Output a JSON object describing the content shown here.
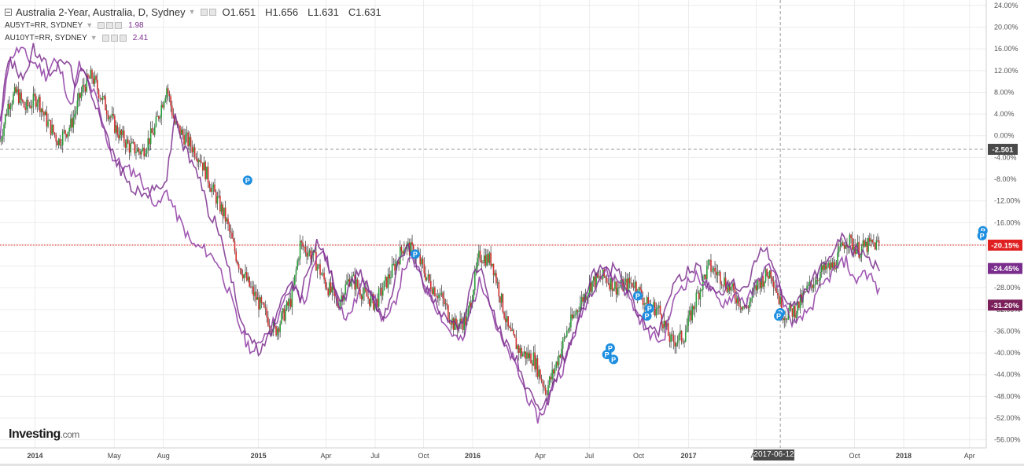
{
  "legend": {
    "main_title": "Australia 2-Year, Australia, D, Sydney",
    "open": "O1.651",
    "high": "H1.656",
    "low": "L1.631",
    "close": "C1.631",
    "series": [
      {
        "name": "AU5YT=RR, SYDNEY",
        "value": "1.98",
        "color": "#8e3aa3"
      },
      {
        "name": "AU10YT=RR, SYDNEY",
        "value": "2.41",
        "color": "#7a2d8c"
      }
    ]
  },
  "logo": {
    "main": "Investing",
    "suffix": ".com"
  },
  "crosshair": {
    "date_label": "2017-06-12",
    "value_label": "-2.501"
  },
  "reference_line_label": "-20.15%",
  "chart_data": {
    "type": "line",
    "ylim": [
      -57.5,
      25
    ],
    "y_ticks": [
      24,
      20,
      16,
      12,
      8,
      4,
      0,
      -4,
      -8,
      -12,
      -16,
      -20,
      -24,
      -28,
      -32,
      -36,
      -40,
      -44,
      -48,
      -52,
      -56
    ],
    "x_ticks": [
      {
        "label": "2014",
        "frac": 0.042
      },
      {
        "label": "May",
        "frac": 0.137
      },
      {
        "label": "Aug",
        "frac": 0.196
      },
      {
        "label": "2015",
        "frac": 0.31
      },
      {
        "label": "Apr",
        "frac": 0.391
      },
      {
        "label": "Jul",
        "frac": 0.45
      },
      {
        "label": "Oct",
        "frac": 0.508
      },
      {
        "label": "2016",
        "frac": 0.567
      },
      {
        "label": "Apr",
        "frac": 0.648
      },
      {
        "label": "Jul",
        "frac": 0.707
      },
      {
        "label": "Oct",
        "frac": 0.766
      },
      {
        "label": "2017",
        "frac": 0.826
      },
      {
        "label": "Apr",
        "frac": 0.907
      },
      {
        "label": "Oct",
        "frac": 1.025
      },
      {
        "label": "2018",
        "frac": 1.084
      },
      {
        "label": "Apr",
        "frac": 1.163
      }
    ],
    "price_labels": [
      {
        "label": "-20.15%",
        "value": -20.15,
        "color": "#e02020"
      },
      {
        "label": "-24.45%",
        "value": -24.45,
        "color": "#7a2d8c"
      },
      {
        "label": "-31.20%",
        "value": -31.2,
        "color": "#7a1f5a"
      }
    ],
    "crosshair_value": -2.501,
    "crosshair_frac": 0.936,
    "reference_value": -20.15,
    "series": [
      {
        "name": "Australia 2-Year",
        "style": "candles",
        "points": [
          [
            0,
            -1
          ],
          [
            0.01,
            6
          ],
          [
            0.02,
            8
          ],
          [
            0.03,
            5
          ],
          [
            0.045,
            7
          ],
          [
            0.055,
            3
          ],
          [
            0.07,
            -1
          ],
          [
            0.085,
            2
          ],
          [
            0.1,
            9
          ],
          [
            0.11,
            11
          ],
          [
            0.125,
            6
          ],
          [
            0.14,
            1
          ],
          [
            0.155,
            -2
          ],
          [
            0.17,
            -3
          ],
          [
            0.185,
            1
          ],
          [
            0.2,
            9
          ],
          [
            0.21,
            2
          ],
          [
            0.225,
            -1
          ],
          [
            0.24,
            -4
          ],
          [
            0.255,
            -10
          ],
          [
            0.27,
            -15
          ],
          [
            0.285,
            -23
          ],
          [
            0.3,
            -28
          ],
          [
            0.315,
            -32
          ],
          [
            0.33,
            -36
          ],
          [
            0.35,
            -30
          ],
          [
            0.36,
            -20
          ],
          [
            0.375,
            -22
          ],
          [
            0.39,
            -27
          ],
          [
            0.405,
            -31
          ],
          [
            0.42,
            -26
          ],
          [
            0.435,
            -29
          ],
          [
            0.45,
            -31
          ],
          [
            0.47,
            -25
          ],
          [
            0.485,
            -20
          ],
          [
            0.5,
            -22
          ],
          [
            0.515,
            -27
          ],
          [
            0.53,
            -30
          ],
          [
            0.545,
            -35
          ],
          [
            0.56,
            -34
          ],
          [
            0.575,
            -22
          ],
          [
            0.59,
            -23
          ],
          [
            0.61,
            -36
          ],
          [
            0.625,
            -40
          ],
          [
            0.64,
            -41
          ],
          [
            0.655,
            -47
          ],
          [
            0.665,
            -43
          ],
          [
            0.68,
            -36
          ],
          [
            0.695,
            -31
          ],
          [
            0.71,
            -27
          ],
          [
            0.725,
            -26
          ],
          [
            0.74,
            -28
          ],
          [
            0.76,
            -27
          ],
          [
            0.775,
            -31
          ],
          [
            0.79,
            -32
          ],
          [
            0.805,
            -38
          ],
          [
            0.82,
            -37
          ],
          [
            0.835,
            -30
          ],
          [
            0.85,
            -24
          ],
          [
            0.865,
            -26
          ],
          [
            0.88,
            -29
          ],
          [
            0.895,
            -32
          ],
          [
            0.91,
            -27
          ],
          [
            0.925,
            -25
          ],
          [
            0.94,
            -33
          ],
          [
            0.955,
            -32
          ],
          [
            0.97,
            -28
          ],
          [
            0.985,
            -25
          ],
          [
            1,
            -24
          ],
          [
            1.015,
            -19
          ],
          [
            1.03,
            -21
          ],
          [
            1.045,
            -20
          ],
          [
            1.055,
            -20
          ]
        ]
      },
      {
        "name": "AU5YT=RR, SYDNEY",
        "style": "line",
        "color": "#8e3aa3",
        "points": [
          [
            0,
            -1
          ],
          [
            0.008,
            12
          ],
          [
            0.015,
            15
          ],
          [
            0.025,
            16
          ],
          [
            0.035,
            14
          ],
          [
            0.045,
            13
          ],
          [
            0.055,
            11
          ],
          [
            0.065,
            14
          ],
          [
            0.075,
            11
          ],
          [
            0.085,
            5
          ],
          [
            0.095,
            13
          ],
          [
            0.105,
            10
          ],
          [
            0.115,
            7
          ],
          [
            0.125,
            1
          ],
          [
            0.135,
            -4
          ],
          [
            0.15,
            -6
          ],
          [
            0.165,
            -7
          ],
          [
            0.18,
            -11
          ],
          [
            0.19,
            -13
          ],
          [
            0.2,
            -10
          ],
          [
            0.21,
            -14
          ],
          [
            0.22,
            -17
          ],
          [
            0.23,
            -20
          ],
          [
            0.245,
            -21
          ],
          [
            0.26,
            -23
          ],
          [
            0.275,
            -29
          ],
          [
            0.285,
            -34
          ],
          [
            0.295,
            -38
          ],
          [
            0.305,
            -40
          ],
          [
            0.315,
            -37
          ],
          [
            0.325,
            -35
          ],
          [
            0.335,
            -33
          ],
          [
            0.345,
            -29
          ],
          [
            0.355,
            -28
          ],
          [
            0.365,
            -31
          ],
          [
            0.375,
            -25
          ],
          [
            0.385,
            -21
          ],
          [
            0.395,
            -24
          ],
          [
            0.405,
            -30
          ],
          [
            0.415,
            -34
          ],
          [
            0.425,
            -31
          ],
          [
            0.435,
            -27
          ],
          [
            0.445,
            -28
          ],
          [
            0.455,
            -33
          ],
          [
            0.465,
            -34
          ],
          [
            0.475,
            -30
          ],
          [
            0.485,
            -24
          ],
          [
            0.495,
            -23
          ],
          [
            0.505,
            -26
          ],
          [
            0.515,
            -29
          ],
          [
            0.525,
            -32
          ],
          [
            0.535,
            -35
          ],
          [
            0.545,
            -37
          ],
          [
            0.555,
            -38
          ],
          [
            0.565,
            -32
          ],
          [
            0.575,
            -27
          ],
          [
            0.585,
            -29
          ],
          [
            0.595,
            -35
          ],
          [
            0.605,
            -39
          ],
          [
            0.615,
            -41
          ],
          [
            0.625,
            -45
          ],
          [
            0.635,
            -49
          ],
          [
            0.645,
            -52
          ],
          [
            0.655,
            -50
          ],
          [
            0.665,
            -45
          ],
          [
            0.675,
            -43
          ],
          [
            0.685,
            -38
          ],
          [
            0.695,
            -34
          ],
          [
            0.705,
            -30
          ],
          [
            0.715,
            -27
          ],
          [
            0.725,
            -25
          ],
          [
            0.735,
            -26
          ],
          [
            0.745,
            -27
          ],
          [
            0.755,
            -30
          ],
          [
            0.765,
            -33
          ],
          [
            0.775,
            -36
          ],
          [
            0.785,
            -37
          ],
          [
            0.795,
            -38
          ],
          [
            0.805,
            -32
          ],
          [
            0.815,
            -28
          ],
          [
            0.825,
            -27
          ],
          [
            0.835,
            -26
          ],
          [
            0.845,
            -27
          ],
          [
            0.855,
            -29
          ],
          [
            0.865,
            -31
          ],
          [
            0.875,
            -30
          ],
          [
            0.885,
            -29
          ],
          [
            0.895,
            -31
          ],
          [
            0.905,
            -28
          ],
          [
            0.915,
            -25
          ],
          [
            0.925,
            -24
          ],
          [
            0.935,
            -28
          ],
          [
            0.945,
            -33
          ],
          [
            0.955,
            -35
          ],
          [
            0.965,
            -33
          ],
          [
            0.975,
            -31
          ],
          [
            0.985,
            -28
          ],
          [
            0.995,
            -26
          ],
          [
            1.005,
            -24
          ],
          [
            1.015,
            -23
          ],
          [
            1.025,
            -27
          ],
          [
            1.035,
            -25
          ],
          [
            1.045,
            -26
          ],
          [
            1.055,
            -29
          ]
        ]
      },
      {
        "name": "AU10YT=RR, SYDNEY",
        "style": "line",
        "color": "#7a2d8c",
        "points": [
          [
            0,
            3
          ],
          [
            0.01,
            14
          ],
          [
            0.02,
            12
          ],
          [
            0.03,
            11
          ],
          [
            0.04,
            16
          ],
          [
            0.05,
            14
          ],
          [
            0.06,
            12
          ],
          [
            0.07,
            13
          ],
          [
            0.08,
            14
          ],
          [
            0.09,
            10
          ],
          [
            0.1,
            12
          ],
          [
            0.11,
            8
          ],
          [
            0.12,
            4
          ],
          [
            0.13,
            -1
          ],
          [
            0.14,
            -5
          ],
          [
            0.155,
            -9
          ],
          [
            0.17,
            -11
          ],
          [
            0.185,
            -10
          ],
          [
            0.2,
            -8
          ],
          [
            0.21,
            4
          ],
          [
            0.22,
            -2
          ],
          [
            0.23,
            -5
          ],
          [
            0.24,
            -8
          ],
          [
            0.25,
            -14
          ],
          [
            0.26,
            -16
          ],
          [
            0.27,
            -22
          ],
          [
            0.28,
            -28
          ],
          [
            0.29,
            -34
          ],
          [
            0.3,
            -37
          ],
          [
            0.31,
            -40
          ],
          [
            0.32,
            -38
          ],
          [
            0.33,
            -34
          ],
          [
            0.34,
            -30
          ],
          [
            0.35,
            -27
          ],
          [
            0.36,
            -30
          ],
          [
            0.37,
            -24
          ],
          [
            0.38,
            -20
          ],
          [
            0.39,
            -22
          ],
          [
            0.4,
            -27
          ],
          [
            0.41,
            -31
          ],
          [
            0.42,
            -28
          ],
          [
            0.43,
            -25
          ],
          [
            0.44,
            -27
          ],
          [
            0.45,
            -31
          ],
          [
            0.46,
            -33
          ],
          [
            0.47,
            -29
          ],
          [
            0.48,
            -22
          ],
          [
            0.49,
            -20
          ],
          [
            0.5,
            -24
          ],
          [
            0.51,
            -28
          ],
          [
            0.52,
            -30
          ],
          [
            0.53,
            -33
          ],
          [
            0.54,
            -34
          ],
          [
            0.55,
            -36
          ],
          [
            0.56,
            -31
          ],
          [
            0.57,
            -24
          ],
          [
            0.58,
            -26
          ],
          [
            0.59,
            -32
          ],
          [
            0.6,
            -36
          ],
          [
            0.61,
            -39
          ],
          [
            0.62,
            -41
          ],
          [
            0.63,
            -46
          ],
          [
            0.64,
            -49
          ],
          [
            0.65,
            -51
          ],
          [
            0.66,
            -48
          ],
          [
            0.67,
            -43
          ],
          [
            0.68,
            -40
          ],
          [
            0.69,
            -36
          ],
          [
            0.7,
            -31
          ],
          [
            0.71,
            -26
          ],
          [
            0.72,
            -24
          ],
          [
            0.73,
            -25
          ],
          [
            0.74,
            -24
          ],
          [
            0.75,
            -27
          ],
          [
            0.76,
            -31
          ],
          [
            0.77,
            -34
          ],
          [
            0.78,
            -35
          ],
          [
            0.79,
            -36
          ],
          [
            0.8,
            -31
          ],
          [
            0.81,
            -27
          ],
          [
            0.82,
            -26
          ],
          [
            0.83,
            -24
          ],
          [
            0.84,
            -25
          ],
          [
            0.85,
            -28
          ],
          [
            0.86,
            -30
          ],
          [
            0.87,
            -28
          ],
          [
            0.88,
            -27
          ],
          [
            0.89,
            -29
          ],
          [
            0.9,
            -26
          ],
          [
            0.91,
            -22
          ],
          [
            0.92,
            -21
          ],
          [
            0.93,
            -25
          ],
          [
            0.94,
            -30
          ],
          [
            0.95,
            -32
          ],
          [
            0.96,
            -30
          ],
          [
            0.97,
            -28
          ],
          [
            0.98,
            -25
          ],
          [
            0.99,
            -24
          ],
          [
            1,
            -21
          ],
          [
            1.01,
            -19
          ],
          [
            1.02,
            -21
          ],
          [
            1.03,
            -21
          ],
          [
            1.04,
            -22
          ],
          [
            1.05,
            -24
          ],
          [
            1.055,
            -26
          ]
        ]
      }
    ]
  }
}
